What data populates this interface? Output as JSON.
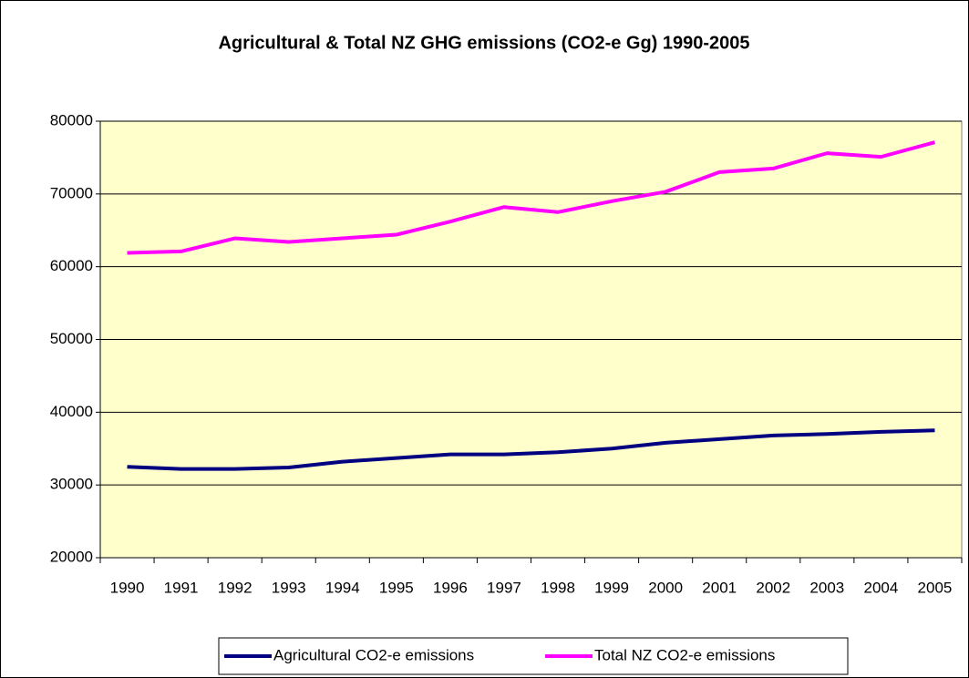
{
  "chart_data": {
    "type": "line",
    "title": "Agricultural & Total NZ GHG emissions (CO2-e Gg) 1990-2005",
    "categories": [
      "1990",
      "1991",
      "1992",
      "1993",
      "1994",
      "1995",
      "1996",
      "1997",
      "1998",
      "1999",
      "2000",
      "2001",
      "2002",
      "2003",
      "2004",
      "2005"
    ],
    "series": [
      {
        "name": "Agricultural CO2-e emissions",
        "color": "#000080",
        "values": [
          32500,
          32200,
          32200,
          32400,
          33200,
          33700,
          34200,
          34200,
          34500,
          35000,
          35800,
          36300,
          36800,
          37000,
          37300,
          37500
        ]
      },
      {
        "name": "Total NZ CO2-e emissions",
        "color": "#ff00ff",
        "values": [
          61900,
          62100,
          63900,
          63400,
          63900,
          64400,
          66200,
          68200,
          67500,
          69000,
          70300,
          73000,
          73500,
          75600,
          75100,
          77100
        ]
      }
    ],
    "ylim": [
      20000,
      80000
    ],
    "yticks": [
      20000,
      30000,
      40000,
      50000,
      60000,
      70000,
      80000
    ],
    "grid": true,
    "legend": "bottom",
    "plot_background": "#ffffcc"
  }
}
